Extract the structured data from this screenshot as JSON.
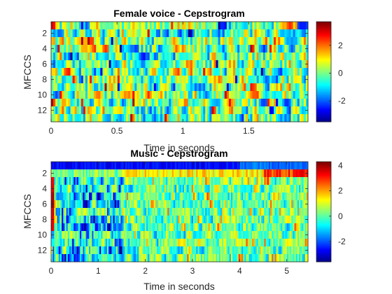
{
  "chart_data": [
    {
      "type": "heatmap",
      "title": "Female voice - Cepstrogram",
      "xlabel": "Time in seconds",
      "ylabel": "MFCCS",
      "xlim": [
        0,
        1.95
      ],
      "ylim": [
        0.5,
        13.5
      ],
      "y_reversed": true,
      "xticks": [
        0,
        0.5,
        1,
        1.5
      ],
      "xtick_labels": [
        "0",
        "0.5",
        "1",
        "1.5"
      ],
      "yticks": [
        2,
        4,
        6,
        8,
        10,
        12
      ],
      "ytick_labels": [
        "2",
        "4",
        "6",
        "8",
        "10",
        "12"
      ],
      "n_rows": 13,
      "n_frames": 120,
      "colormap": "jet",
      "clim": [
        -3.5,
        3.7
      ],
      "colorbar_ticks": [
        -2,
        0,
        2
      ],
      "colorbar_tick_labels": [
        "-2",
        "0",
        "2"
      ]
    },
    {
      "type": "heatmap",
      "title": "Music - Cepstrogram",
      "xlabel": "Time in seconds",
      "ylabel": "MFCCS",
      "xlim": [
        0,
        5.45
      ],
      "ylim": [
        0.5,
        13.5
      ],
      "y_reversed": true,
      "xticks": [
        0,
        1,
        2,
        3,
        4,
        5
      ],
      "xtick_labels": [
        "0",
        "1",
        "2",
        "3",
        "4",
        "5"
      ],
      "yticks": [
        2,
        4,
        6,
        8,
        10,
        12
      ],
      "ytick_labels": [
        "2",
        "4",
        "6",
        "8",
        "10",
        "12"
      ],
      "n_rows": 13,
      "n_frames": 170,
      "colormap": "jet",
      "clim": [
        -3.6,
        4.3
      ],
      "colorbar_ticks": [
        -2,
        0,
        2,
        4
      ],
      "colorbar_tick_labels": [
        "-2",
        "0",
        "2",
        "4"
      ]
    }
  ]
}
